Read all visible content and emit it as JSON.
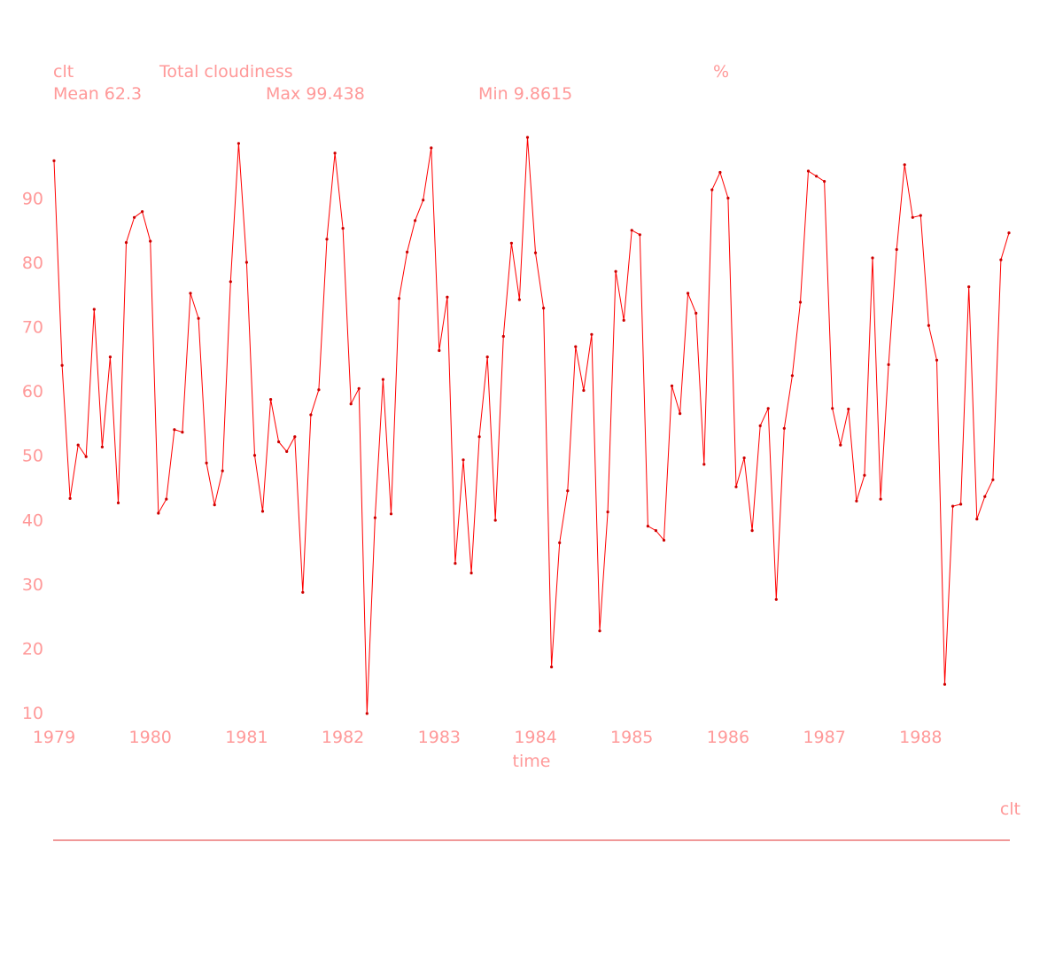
{
  "header": {
    "var_name": "clt",
    "long_name": "Total cloudiness",
    "units": "%",
    "mean_text": "Mean 62.3",
    "max_text": "Max 99.438",
    "min_text": "Min 9.8615"
  },
  "footer": {
    "var_label": "clt"
  },
  "colors": {
    "text": "#ff9999",
    "line": "#ff0000",
    "marker": "#cc0000",
    "baseline": "#e03030"
  },
  "chart_data": {
    "type": "line",
    "title": "Total cloudiness",
    "xlabel": "time",
    "ylabel": "",
    "x_start": 1979,
    "x_step": 0.0833333,
    "xlim": [
      1979,
      1988.9167
    ],
    "ylim": [
      9.8615,
      99.438
    ],
    "x_ticks": [
      1979,
      1980,
      1981,
      1982,
      1983,
      1984,
      1985,
      1986,
      1987,
      1988
    ],
    "x_tick_labels": [
      "1979",
      "1980",
      "1981",
      "1982",
      "1983",
      "1984",
      "1985",
      "1986",
      "1987",
      "1988"
    ],
    "y_ticks": [
      10,
      20,
      30,
      40,
      50,
      60,
      70,
      80,
      90
    ],
    "y_tick_labels": [
      "10",
      "20",
      "30",
      "40",
      "50",
      "60",
      "70",
      "80",
      "90"
    ],
    "grid": false,
    "series": [
      {
        "name": "clt",
        "values": [
          95.8,
          64.0,
          43.3,
          51.6,
          49.8,
          72.7,
          51.3,
          65.3,
          42.6,
          83.1,
          87.0,
          87.9,
          83.3,
          41.0,
          43.2,
          54.0,
          53.6,
          75.2,
          71.3,
          48.8,
          42.3,
          47.6,
          77.0,
          98.5,
          80.0,
          50.0,
          41.3,
          58.7,
          52.1,
          50.6,
          52.9,
          28.7,
          56.3,
          60.2,
          83.6,
          97.0,
          85.3,
          58.0,
          60.4,
          9.8615,
          40.3,
          61.8,
          40.9,
          74.4,
          81.6,
          86.5,
          89.7,
          97.8,
          66.3,
          74.6,
          33.2,
          49.3,
          31.7,
          52.9,
          65.3,
          39.9,
          68.5,
          83.0,
          74.2,
          99.438,
          81.5,
          72.9,
          17.1,
          36.4,
          44.5,
          66.9,
          60.1,
          68.8,
          22.7,
          41.2,
          78.6,
          71.0,
          85.0,
          84.3,
          39.0,
          38.3,
          36.8,
          60.8,
          56.5,
          75.2,
          72.1,
          48.6,
          91.3,
          94.0,
          90.0,
          45.1,
          49.6,
          38.3,
          54.6,
          57.3,
          27.6,
          54.2,
          62.4,
          73.8,
          94.2,
          93.4,
          92.6,
          57.3,
          51.6,
          57.2,
          42.9,
          46.9,
          80.7,
          43.2,
          64.1,
          82.0,
          95.2,
          87.0,
          87.3,
          70.2,
          64.8,
          14.4,
          42.1,
          42.4,
          76.2,
          40.1,
          43.6,
          46.2,
          80.4,
          84.6
        ]
      }
    ]
  }
}
